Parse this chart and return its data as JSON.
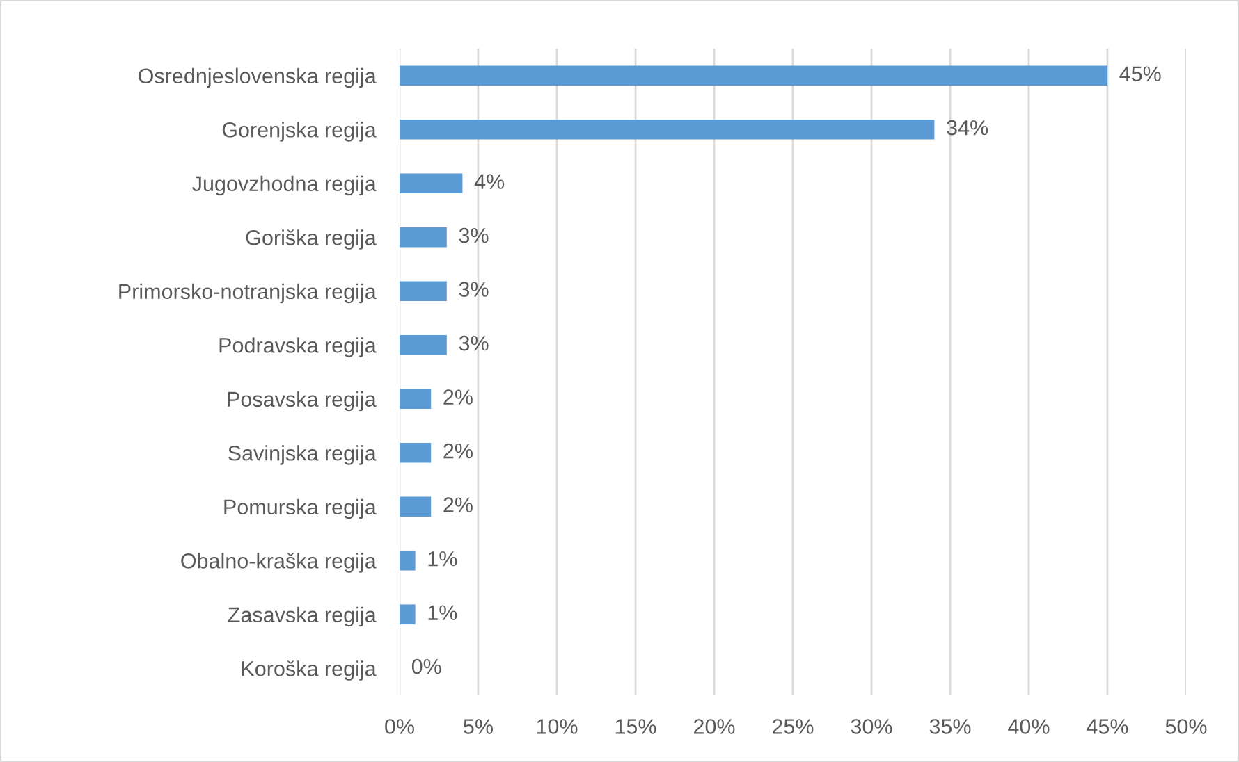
{
  "chart_data": {
    "type": "bar",
    "orientation": "horizontal",
    "categories": [
      "Osrednjeslovenska regija",
      "Gorenjska regija",
      "Jugovzhodna regija",
      "Goriška regija",
      "Primorsko-notranjska regija",
      "Podravska regija",
      "Posavska regija",
      "Savinjska regija",
      "Pomurska regija",
      "Obalno-kraška regija",
      "Zasavska regija",
      "Koroška regija"
    ],
    "values": [
      45,
      34,
      4,
      3,
      3,
      3,
      2,
      2,
      2,
      1,
      1,
      0
    ],
    "value_labels": [
      "45%",
      "34%",
      "4%",
      "3%",
      "3%",
      "3%",
      "2%",
      "2%",
      "2%",
      "1%",
      "1%",
      "0%"
    ],
    "color": "#5b9bd5",
    "xlim": [
      0,
      50
    ],
    "xticks": [
      {
        "value": 0,
        "label": "0%"
      },
      {
        "value": 5,
        "label": "5%"
      },
      {
        "value": 10,
        "label": "10%"
      },
      {
        "value": 15,
        "label": "15%"
      },
      {
        "value": 20,
        "label": "20%"
      },
      {
        "value": 25,
        "label": "25%"
      },
      {
        "value": 30,
        "label": "30%"
      },
      {
        "value": 35,
        "label": "35%"
      },
      {
        "value": 40,
        "label": "40%"
      },
      {
        "value": 45,
        "label": "45%"
      },
      {
        "value": 50,
        "label": "50%"
      }
    ],
    "grid": "x",
    "legend": false
  }
}
